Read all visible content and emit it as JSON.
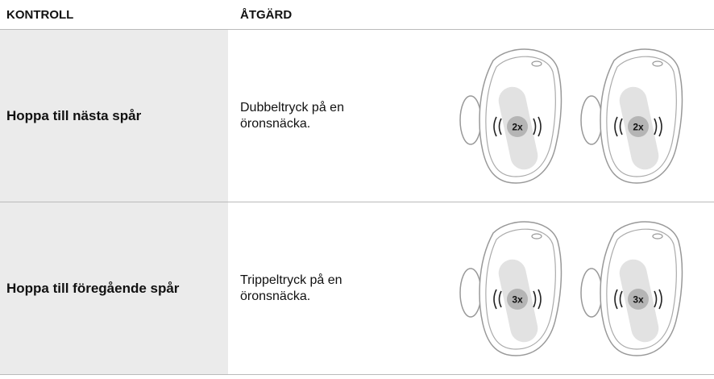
{
  "table": {
    "headers": [
      "KONTROLL",
      "ÅTGÄRD"
    ],
    "rows": [
      {
        "control": "Hoppa till nästa spår",
        "action": "Dubbeltryck på en öronsnäcka.",
        "badge": "2x"
      },
      {
        "control": "Hoppa till föregående spår",
        "action": "Trippeltryck på en öronsnäcka.",
        "badge": "3x"
      }
    ]
  }
}
